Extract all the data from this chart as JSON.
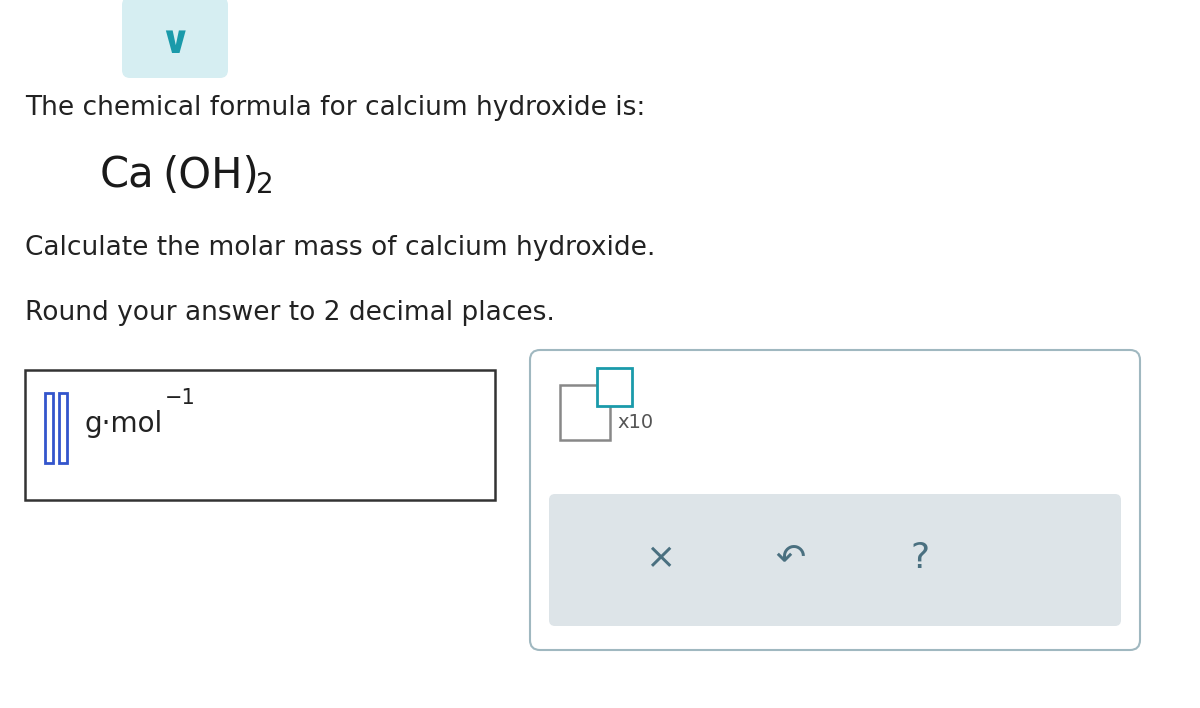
{
  "bg_color": "#ffffff",
  "text_color": "#222222",
  "teal_color": "#1a9aaa",
  "teal_light": "#d6eef2",
  "line1": "The chemical formula for calcium hydroxide is:",
  "line3": "Calculate the molar mass of calcium hydroxide.",
  "line4": "Round your answer to 2 decimal places.",
  "unit_text": "g·mol",
  "unit_exp": "−1",
  "icon_color": "#2a7db5",
  "gray_panel_color": "#dde4e8",
  "box2_border_color": "#a0b8c0",
  "x_symbol": "×",
  "undo_symbol": "↶",
  "question_symbol": "?",
  "symbol_color": "#4a7080",
  "cursor_color": "#3355cc"
}
